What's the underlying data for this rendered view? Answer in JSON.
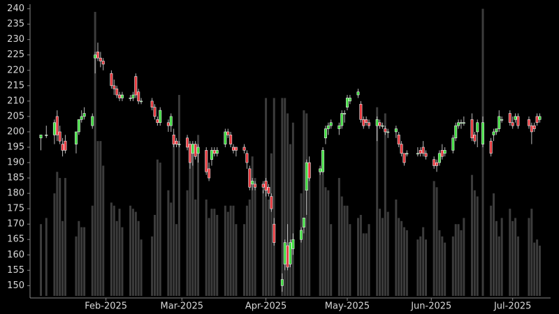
{
  "chart_data": {
    "type": "candlestick",
    "x": [
      "2025-01-08",
      "2025-01-10",
      "2025-01-13",
      "2025-01-14",
      "2025-01-15",
      "2025-01-16",
      "2025-01-17",
      "2025-01-21",
      "2025-01-22",
      "2025-01-23",
      "2025-01-24",
      "2025-01-27",
      "2025-01-28",
      "2025-01-29",
      "2025-01-30",
      "2025-01-31",
      "2025-02-03",
      "2025-02-04",
      "2025-02-05",
      "2025-02-06",
      "2025-02-07",
      "2025-02-10",
      "2025-02-11",
      "2025-02-12",
      "2025-02-13",
      "2025-02-14",
      "2025-02-18",
      "2025-02-19",
      "2025-02-20",
      "2025-02-21",
      "2025-02-24",
      "2025-02-25",
      "2025-02-26",
      "2025-02-27",
      "2025-02-28",
      "2025-03-03",
      "2025-03-04",
      "2025-03-05",
      "2025-03-06",
      "2025-03-07",
      "2025-03-10",
      "2025-03-11",
      "2025-03-12",
      "2025-03-13",
      "2025-03-14",
      "2025-03-17",
      "2025-03-18",
      "2025-03-19",
      "2025-03-20",
      "2025-03-21",
      "2025-03-24",
      "2025-03-25",
      "2025-03-26",
      "2025-03-27",
      "2025-03-28",
      "2025-03-31",
      "2025-04-01",
      "2025-04-02",
      "2025-04-03",
      "2025-04-04",
      "2025-04-07",
      "2025-04-08",
      "2025-04-09",
      "2025-04-10",
      "2025-04-11",
      "2025-04-14",
      "2025-04-15",
      "2025-04-16",
      "2025-04-17",
      "2025-04-21",
      "2025-04-22",
      "2025-04-23",
      "2025-04-24",
      "2025-04-25",
      "2025-04-28",
      "2025-04-29",
      "2025-04-30",
      "2025-05-01",
      "2025-05-02",
      "2025-05-05",
      "2025-05-06",
      "2025-05-07",
      "2025-05-08",
      "2025-05-09",
      "2025-05-12",
      "2025-05-13",
      "2025-05-14",
      "2025-05-15",
      "2025-05-16",
      "2025-05-19",
      "2025-05-20",
      "2025-05-21",
      "2025-05-22",
      "2025-05-23",
      "2025-05-27",
      "2025-05-28",
      "2025-05-29",
      "2025-05-30",
      "2025-06-02",
      "2025-06-03",
      "2025-06-04",
      "2025-06-05",
      "2025-06-06",
      "2025-06-09",
      "2025-06-10",
      "2025-06-11",
      "2025-06-12",
      "2025-06-13",
      "2025-06-16",
      "2025-06-17",
      "2025-06-18",
      "2025-06-20",
      "2025-06-23",
      "2025-06-24",
      "2025-06-25",
      "2025-06-26",
      "2025-06-27",
      "2025-06-30",
      "2025-07-01",
      "2025-07-02",
      "2025-07-03",
      "2025-07-07",
      "2025-07-08",
      "2025-07-09",
      "2025-07-10",
      "2025-07-11"
    ],
    "open": [
      198,
      199,
      199,
      205,
      200,
      196,
      197,
      196,
      200,
      204,
      205,
      202,
      224,
      226,
      224,
      223,
      219,
      215,
      214,
      212,
      211,
      211,
      211,
      218,
      213,
      210,
      210,
      208,
      204,
      203,
      203,
      202,
      199,
      197,
      196,
      198,
      196,
      193,
      196,
      193,
      194,
      188,
      191,
      194,
      193,
      196,
      200,
      199,
      195,
      195,
      195,
      193,
      188,
      183,
      183,
      183,
      184,
      182,
      179,
      170,
      150,
      157,
      163,
      157,
      162,
      165,
      169,
      181,
      190,
      187,
      187,
      198,
      201,
      202,
      201,
      202,
      206,
      208,
      210,
      212,
      209,
      204,
      204,
      203,
      202,
      203,
      202,
      201,
      200,
      200,
      199,
      196,
      193,
      193,
      193,
      194,
      195,
      193,
      191,
      190,
      190,
      194,
      193,
      194,
      198,
      202,
      203,
      203,
      204,
      199,
      200,
      196,
      197,
      199,
      200,
      201,
      204,
      206,
      203,
      204,
      205,
      204,
      202,
      202,
      205,
      204
    ],
    "high": [
      199,
      202,
      204,
      207,
      202,
      198,
      199,
      200,
      204,
      207,
      208,
      206,
      226,
      229,
      226,
      224,
      220,
      217,
      215,
      213,
      213,
      212,
      213,
      219,
      214,
      211,
      211,
      209,
      205,
      208,
      204,
      206,
      201,
      198,
      197,
      199,
      197,
      197,
      197,
      196,
      195,
      190,
      195,
      195,
      195,
      201,
      201,
      200,
      196,
      195,
      196,
      194,
      189,
      185,
      184,
      184,
      185,
      183,
      180,
      172,
      154,
      165,
      170,
      165,
      167,
      169,
      172,
      191,
      192,
      189,
      195,
      202,
      203,
      204,
      203,
      207,
      207,
      212,
      212,
      214,
      210,
      205,
      205,
      204,
      205,
      204,
      203,
      202,
      201,
      202,
      200,
      197,
      193,
      194,
      195,
      195,
      197,
      194,
      192,
      191,
      194,
      196,
      195,
      199,
      203,
      204,
      204,
      205,
      206,
      200,
      204,
      205,
      198,
      201,
      201,
      207,
      205,
      207,
      205,
      206,
      206,
      205,
      203,
      203,
      206,
      206
    ],
    "low": [
      194,
      198,
      196,
      197,
      196,
      192,
      193,
      193,
      199,
      203,
      204,
      201,
      219,
      223,
      221,
      220,
      214,
      212,
      211,
      210,
      210,
      210,
      210,
      211,
      209,
      209,
      207,
      204,
      202,
      202,
      200,
      200,
      195,
      195,
      195,
      194,
      188,
      189,
      191,
      190,
      186,
      184,
      189,
      192,
      192,
      195,
      198,
      195,
      193,
      192,
      193,
      188,
      181,
      181,
      181,
      180,
      179,
      179,
      174,
      163,
      148,
      155,
      155,
      156,
      160,
      164,
      167,
      173,
      184,
      186,
      186,
      196,
      199,
      201,
      199,
      201,
      203,
      207,
      209,
      211,
      203,
      201,
      202,
      201,
      197,
      201,
      201,
      199,
      198,
      198,
      195,
      192,
      189,
      192,
      192,
      192,
      192,
      191,
      188,
      187,
      189,
      191,
      192,
      193,
      197,
      201,
      201,
      202,
      197,
      196,
      195,
      195,
      192,
      197,
      199,
      200,
      203,
      202,
      201,
      203,
      201,
      201,
      196,
      200,
      202,
      203
    ],
    "close": [
      199,
      199,
      203,
      199,
      197,
      194,
      194,
      200,
      204,
      205,
      206,
      205,
      225,
      224,
      223,
      222,
      215,
      214,
      212,
      211,
      212,
      211,
      212,
      212,
      210,
      210,
      208,
      205,
      203,
      207,
      202,
      205,
      196,
      196,
      196,
      195,
      190,
      196,
      192,
      195,
      187,
      185,
      194,
      193,
      194,
      200,
      199,
      196,
      194,
      194,
      194,
      190,
      182,
      184,
      182,
      182,
      181,
      180,
      175,
      164,
      152,
      164,
      156,
      164,
      165,
      168,
      172,
      190,
      185,
      188,
      194,
      201,
      202,
      203,
      202,
      206,
      206,
      211,
      211,
      213,
      204,
      202,
      203,
      202,
      204,
      202,
      202,
      200,
      200,
      201,
      196,
      193,
      190,
      193,
      193,
      193,
      193,
      192,
      189,
      189,
      193,
      192,
      194,
      198,
      202,
      203,
      203,
      203,
      198,
      197,
      203,
      203,
      193,
      200,
      201,
      205,
      204,
      203,
      202,
      205,
      202,
      202,
      200,
      201,
      203,
      205
    ],
    "volume": [
      170,
      172,
      180,
      187,
      185,
      171,
      185,
      166,
      171,
      169,
      169,
      176,
      239,
      197,
      197,
      189,
      177,
      176,
      171,
      175,
      169,
      176,
      175,
      174,
      171,
      165,
      166,
      173,
      191,
      190,
      181,
      177,
      196,
      170,
      212,
      181,
      190,
      195,
      178,
      199,
      178,
      172,
      175,
      175,
      173,
      176,
      174,
      176,
      176,
      170,
      170,
      176,
      178,
      192,
      185,
      181,
      211,
      178,
      193,
      211,
      211,
      211,
      206,
      196,
      203,
      180,
      207,
      206,
      185,
      187,
      186,
      182,
      181,
      170,
      185,
      179,
      176,
      176,
      170,
      172,
      173,
      167,
      167,
      170,
      208,
      175,
      172,
      206,
      174,
      178,
      172,
      171,
      169,
      168,
      165,
      166,
      169,
      165,
      184,
      182,
      168,
      166,
      164,
      166,
      170,
      170,
      168,
      172,
      186,
      181,
      179,
      240,
      176,
      180,
      171,
      166,
      172,
      175,
      171,
      172,
      166,
      172,
      175,
      164,
      165,
      163
    ],
    "up_color": "#3ddc3d",
    "down_color": "#e8383d",
    "wick_color": "#bbbbbb",
    "volume_color": "#3c3c3c",
    "xlim": [
      "2025-01-04",
      "2025-07-15"
    ],
    "xticks": [
      {
        "value": "2025-02-01",
        "label": "Feb-2025"
      },
      {
        "value": "2025-03-01",
        "label": "Mar-2025"
      },
      {
        "value": "2025-04-01",
        "label": "Apr-2025"
      },
      {
        "value": "2025-05-01",
        "label": "May-2025"
      },
      {
        "value": "2025-06-01",
        "label": "Jun-2025"
      },
      {
        "value": "2025-07-01",
        "label": "Jul-2025"
      }
    ],
    "ylim": [
      146,
      241.5
    ],
    "yticks": [
      150,
      155,
      160,
      165,
      170,
      175,
      180,
      185,
      190,
      195,
      200,
      205,
      210,
      215,
      220,
      225,
      230,
      235,
      240
    ]
  }
}
